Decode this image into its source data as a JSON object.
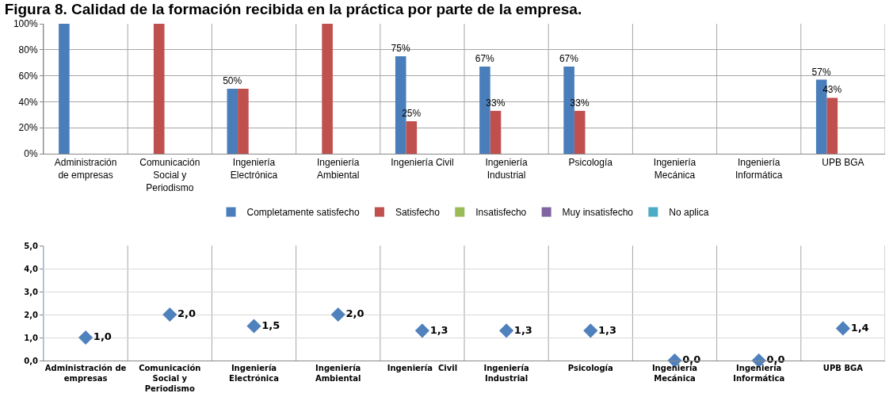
{
  "chart_data": [
    {
      "type": "bar",
      "title": "Figura 8. Calidad de la formación recibida en la práctica por parte de la empresa.",
      "categories": [
        "Administración de empresas",
        "Comunicación Social y Periodismo",
        "Ingeniería Electrónica",
        "Ingeniería Ambiental",
        "Ingeniería Civil",
        "Ingeniería Industrial",
        "Psicología",
        "Ingeniería Mecánica",
        "Ingeniería Informática",
        "UPB BGA"
      ],
      "series": [
        {
          "name": "Completamente satisfecho",
          "color": "#4a7ebb",
          "values": [
            100,
            0,
            50,
            0,
            75,
            67,
            67,
            0,
            0,
            57
          ],
          "value_labels": [
            null,
            null,
            "50%",
            null,
            "75%",
            "67%",
            "67%",
            null,
            null,
            "57%"
          ]
        },
        {
          "name": "Satisfecho",
          "color": "#c0504d",
          "values": [
            0,
            100,
            50,
            100,
            25,
            33,
            33,
            0,
            0,
            43
          ],
          "value_labels": [
            null,
            null,
            null,
            null,
            "25%",
            "33%",
            "33%",
            null,
            null,
            "43%"
          ]
        },
        {
          "name": "Insatisfecho",
          "color": "#9bbb59",
          "values": [
            0,
            0,
            0,
            0,
            0,
            0,
            0,
            0,
            0,
            0
          ]
        },
        {
          "name": "Muy insatisfecho",
          "color": "#8064a2",
          "values": [
            0,
            0,
            0,
            0,
            0,
            0,
            0,
            0,
            0,
            0
          ]
        },
        {
          "name": "No aplica",
          "color": "#4bacc6",
          "values": [
            0,
            0,
            0,
            0,
            0,
            0,
            0,
            0,
            0,
            0
          ]
        }
      ],
      "ylim": [
        0,
        100
      ],
      "yticks": [
        {
          "value": 0,
          "label": "0%"
        },
        {
          "value": 20,
          "label": "20%"
        },
        {
          "value": 40,
          "label": "40%"
        },
        {
          "value": 60,
          "label": "60%"
        },
        {
          "value": 80,
          "label": "80%"
        },
        {
          "value": 100,
          "label": "100%"
        }
      ],
      "grid": true,
      "legend": "bottom"
    },
    {
      "type": "scatter",
      "marker": "diamond",
      "categories": [
        "Administración de empresas",
        "Comunicación Social y Periodismo",
        "Ingeniería Electrónica",
        "Ingeniería Ambiental",
        "Ingeniería  Civil",
        "Ingeniería Industrial",
        "Psicología",
        "Ingeniería Mecánica",
        "Ingeniería Informática",
        "UPB BGA"
      ],
      "series": [
        {
          "color": "#4f81bd",
          "values": [
            1.0,
            2.0,
            1.5,
            2.0,
            1.3,
            1.3,
            1.3,
            0.0,
            0.0,
            1.4
          ],
          "value_labels": [
            "1,0",
            "2,0",
            "1,5",
            "2,0",
            "1,3",
            "1,3",
            "1,3",
            "0,0",
            "0,0",
            "1,4"
          ]
        }
      ],
      "ylim": [
        0,
        5
      ],
      "yticks": [
        {
          "value": 0,
          "label": "0,0"
        },
        {
          "value": 1,
          "label": "1,0"
        },
        {
          "value": 2,
          "label": "2,0"
        },
        {
          "value": 3,
          "label": "3,0"
        },
        {
          "value": 4,
          "label": "4,0"
        },
        {
          "value": 5,
          "label": "5,0"
        }
      ],
      "grid": true,
      "legend": false
    }
  ]
}
